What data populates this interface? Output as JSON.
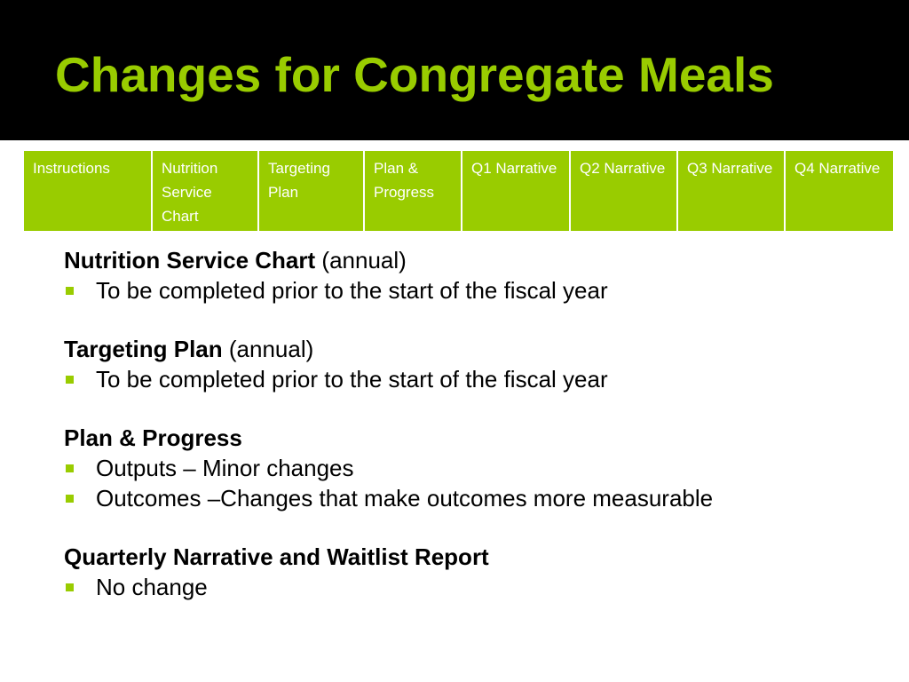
{
  "slide": {
    "title": "Changes for Congregate Meals"
  },
  "tabs": [
    {
      "label": "Instructions"
    },
    {
      "label": "Nutrition Service Chart"
    },
    {
      "label": "Targeting Plan"
    },
    {
      "label": "Plan & Progress"
    },
    {
      "label": "Q1 Narrative"
    },
    {
      "label": "Q2 Narrative"
    },
    {
      "label": "Q3 Narrative"
    },
    {
      "label": "Q4 Narrative"
    }
  ],
  "sections": [
    {
      "heading": "Nutrition Service Chart",
      "qualifier": "(annual)",
      "bullets": [
        "To be completed prior to the start of the fiscal year"
      ]
    },
    {
      "heading": "Targeting Plan",
      "qualifier": "(annual)",
      "bullets": [
        "To be completed prior to the start of the fiscal year"
      ]
    },
    {
      "heading": "Plan & Progress",
      "qualifier": "",
      "bullets": [
        "Outputs – Minor changes",
        "Outcomes –Changes that make outcomes more measurable"
      ]
    },
    {
      "heading": "Quarterly Narrative and Waitlist Report",
      "qualifier": "",
      "bullets": [
        "No change"
      ]
    }
  ],
  "colors": {
    "accent": "#99cc00",
    "title_background": "#000000",
    "body_background": "#ffffff"
  }
}
